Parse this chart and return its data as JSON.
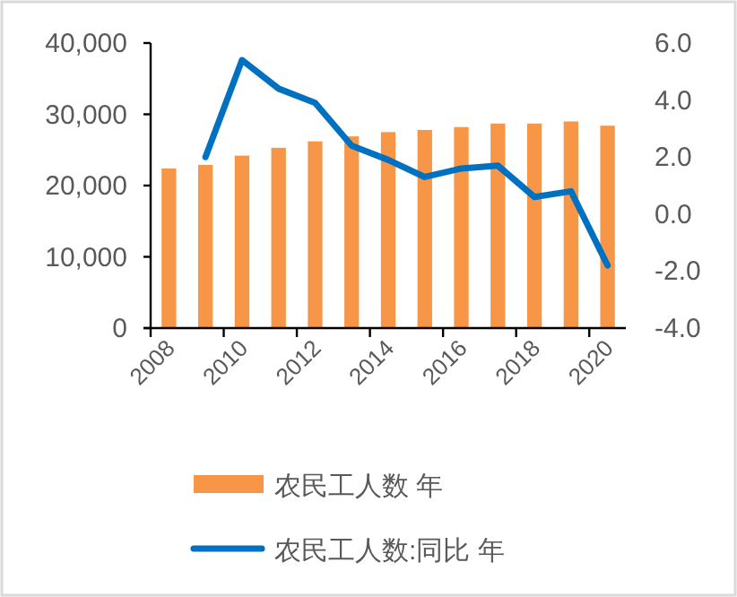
{
  "chart_data": {
    "type": "bar",
    "categories": [
      "2008",
      null,
      "2010",
      null,
      "2012",
      null,
      "2014",
      null,
      "2016",
      null,
      "2018",
      null,
      "2020"
    ],
    "series": [
      {
        "name": "农民工人数 年",
        "color": "#f79646",
        "values": [
          22400,
          22900,
          24200,
          25300,
          26200,
          26900,
          27500,
          27800,
          28200,
          28700,
          28700,
          29000,
          28400
        ]
      },
      {
        "name": "农民工人数:同比 年",
        "type": "line",
        "axis": "y2",
        "color": "#0070c0",
        "values": [
          null,
          2.0,
          5.4,
          4.4,
          3.9,
          2.4,
          1.9,
          1.3,
          1.6,
          1.7,
          0.6,
          0.8,
          -1.8
        ]
      }
    ],
    "ylim": [
      0,
      40000
    ],
    "yticks": [
      {
        "value": 0,
        "label": "0"
      },
      {
        "value": 10000,
        "label": "10,000"
      },
      {
        "value": 20000,
        "label": "20,000"
      },
      {
        "value": 30000,
        "label": "30,000"
      },
      {
        "value": 40000,
        "label": "40,000"
      }
    ],
    "y2lim": [
      -4,
      6
    ],
    "y2ticks": [
      {
        "value": -4,
        "label": "-4.0"
      },
      {
        "value": -2,
        "label": "-2.0"
      },
      {
        "value": 0,
        "label": "0.0"
      },
      {
        "value": 2,
        "label": "2.0"
      },
      {
        "value": 4,
        "label": "4.0"
      },
      {
        "value": 6,
        "label": "6.0"
      }
    ],
    "legend": "bottom"
  }
}
